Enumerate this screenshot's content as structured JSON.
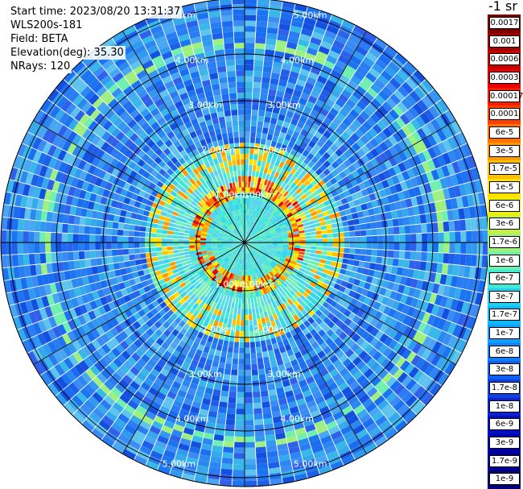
{
  "info": {
    "start_time": "Start time: 2023/08/20 13:31:37",
    "instrument": "WLS200s-181",
    "field": "Field: BETA",
    "elevation": "Elevation(deg): 35.30",
    "nrays": "NRays: 120"
  },
  "colorbar": {
    "title": "-1 sr",
    "labels": [
      "0.0017",
      "0.001",
      "0.0006",
      "0.0003",
      "0.00017",
      "0.0001",
      "6e-5",
      "3e-5",
      "1.7e-5",
      "1e-5",
      "6e-6",
      "3e-6",
      "1.7e-6",
      "1e-6",
      "6e-7",
      "3e-7",
      "1.7e-7",
      "1e-7",
      "6e-8",
      "3e-8",
      "1.7e-8",
      "1e-8",
      "6e-9",
      "3e-9",
      "1.7e-9",
      "1e-9"
    ],
    "colors": [
      "#7a0000",
      "#a00000",
      "#c80000",
      "#e60000",
      "#ff1a00",
      "#ff4000",
      "#ff7000",
      "#ff9a00",
      "#ffc000",
      "#ffe000",
      "#f0f000",
      "#c8f040",
      "#a0f080",
      "#70f0b0",
      "#40e8d8",
      "#20d0f0",
      "#10b8f8",
      "#10a0ff",
      "#1080ff",
      "#1060f0",
      "#1040e0",
      "#1020d0",
      "#0010c0",
      "#0000a8",
      "#000090",
      "#000070"
    ]
  },
  "range_labels": [
    "1.00km",
    "2.00km",
    "3.00km",
    "4.00km",
    "5.00km"
  ],
  "num_rays": 120,
  "palette": {
    "background_field": "#2a7cf2",
    "grid": "#000000",
    "ray_gap": "#ffffff"
  }
}
